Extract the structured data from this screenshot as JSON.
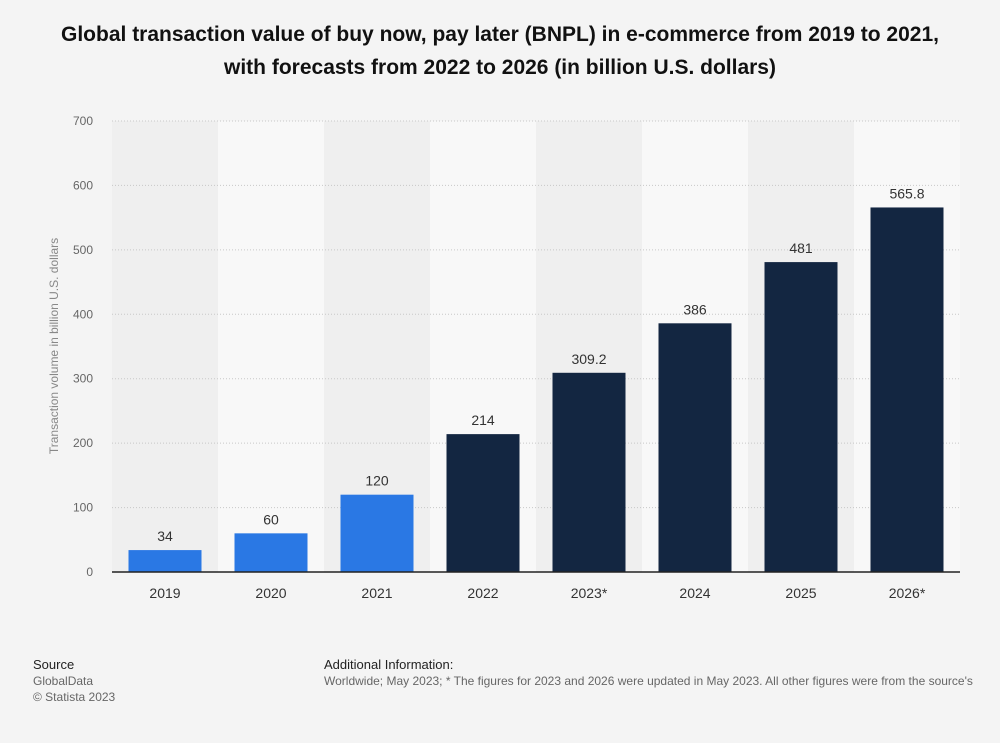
{
  "chart_data": {
    "type": "bar",
    "title": "Global transaction value of buy now, pay later (BNPL) in e-commerce from 2019 to 2021, with forecasts from 2022 to 2026 (in billion U.S. dollars)",
    "xlabel": "",
    "ylabel": "Transaction volume in billion U.S. dollars",
    "ylim": [
      0,
      700
    ],
    "yticks": [
      0,
      100,
      200,
      300,
      400,
      500,
      600,
      700
    ],
    "categories": [
      "2019",
      "2020",
      "2021",
      "2022",
      "2023*",
      "2024",
      "2025",
      "2026*"
    ],
    "values": [
      34,
      60,
      120,
      214,
      309.2,
      386,
      481,
      565.8
    ],
    "value_labels": [
      "34",
      "60",
      "120",
      "214",
      "309.2",
      "386",
      "481",
      "565.8"
    ],
    "bar_colors": [
      "#2a78e4",
      "#2a78e4",
      "#2a78e4",
      "#132641",
      "#132641",
      "#132641",
      "#132641",
      "#132641"
    ],
    "grid": true,
    "legend": "none"
  },
  "footer": {
    "source_heading": "Source",
    "source_name": "GlobalData",
    "copyright": "© Statista 2023",
    "info_heading": "Additional Information:",
    "info_text": "Worldwide; May 2023; * The figures for 2023 and 2026 were updated in May 2023. All other figures were from the source's"
  }
}
